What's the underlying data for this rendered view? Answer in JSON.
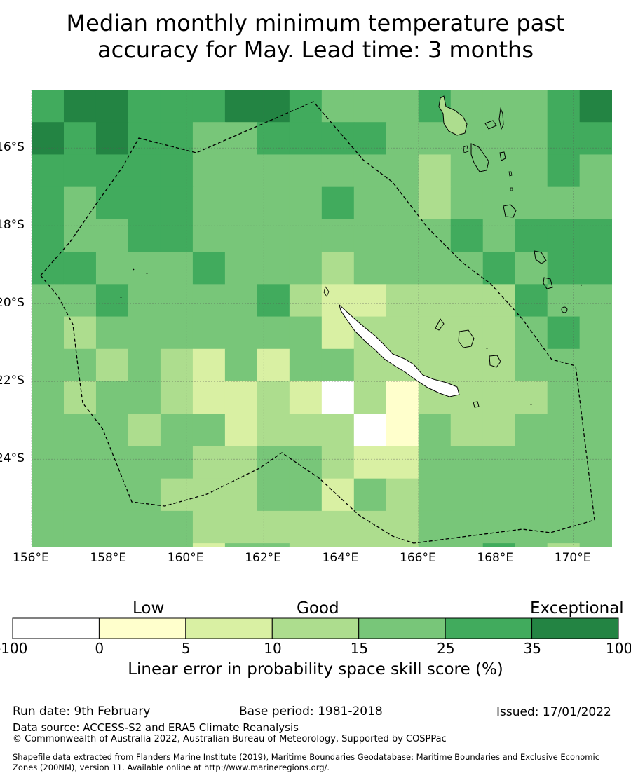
{
  "title_line1": "Median monthly minimum temperature past",
  "title_line2": "accuracy for May. Lead time: 3 months",
  "map": {
    "lon_range": [
      156,
      171
    ],
    "lat_range": [
      -26.25,
      -14.5
    ],
    "lon_ticks": [
      "156°E",
      "158°E",
      "160°E",
      "162°E",
      "164°E",
      "166°E",
      "168°E",
      "170°E"
    ],
    "lon_tick_values": [
      156,
      158,
      160,
      162,
      164,
      166,
      168,
      170
    ],
    "lat_ticks": [
      "16°S",
      "18°S",
      "20°S",
      "22°S",
      "24°S"
    ],
    "lat_tick_values": [
      -16,
      -18,
      -20,
      -22,
      -24
    ],
    "grid": true,
    "boundary": "dashed black EEZ outline",
    "landmass": "New Caledonia and Vanuatu coastlines"
  },
  "legend": {
    "qualitative_labels": [
      "Low",
      "Good",
      "Exceptional"
    ],
    "boundaries": [
      "-100",
      "0",
      "5",
      "10",
      "15",
      "25",
      "35",
      "100"
    ],
    "colors": [
      "#ffffff",
      "#ffffcc",
      "#d9f0a3",
      "#addd8e",
      "#78c679",
      "#41ab5d",
      "#238443"
    ],
    "title": "Linear error in probability space skill score (%)"
  },
  "footer": {
    "run_date": "Run date: 9th February",
    "base_period": "Base period: 1981-2018",
    "issued": "Issued: 17/01/2022",
    "data_source": "Data source: ACCESS-S2 and ERA5 Climate Reanalysis",
    "copyright": "© Commonwealth of Australia 2022, Australian Bureau of Meteorology, Supported by COSPPac",
    "shapefile_line1": "Shapefile data extracted from Flanders Marine Institute (2019), Maritime Boundaries Geodatabase: Maritime Boundaries and Exclusive Economic",
    "shapefile_line2": "Zones (200NM), version 11. Available online at http://www.marineregions.org/."
  },
  "chart_data": {
    "type": "heatmap",
    "title": "Median monthly minimum temperature past accuracy for May. Lead time: 3 months",
    "colorbar_label": "Linear error in probability space skill score (%)",
    "class_boundaries": [
      -100,
      0,
      5,
      10,
      15,
      25,
      35,
      100
    ],
    "lon_start": 156,
    "lat_start": -14.5,
    "cell_size_deg": 0.833,
    "value_key": "class index: 0 = -100 to 0, 1 = 0 to 5, 2 = 5 to 10, 3 = 10 to 15, 4 = 15 to 25, 5 = 25 to 35, 6 = 35 to 100",
    "grid_classes": [
      [
        5,
        6,
        6,
        5,
        5,
        5,
        6,
        6,
        5,
        4,
        4,
        4,
        5,
        4,
        4,
        4,
        5,
        6
      ],
      [
        6,
        5,
        6,
        5,
        5,
        4,
        4,
        5,
        5,
        5,
        5,
        4,
        4,
        4,
        4,
        4,
        5,
        5
      ],
      [
        5,
        5,
        5,
        5,
        5,
        4,
        4,
        4,
        4,
        4,
        4,
        4,
        3,
        4,
        4,
        4,
        5,
        4
      ],
      [
        5,
        4,
        5,
        5,
        5,
        4,
        4,
        4,
        4,
        5,
        4,
        4,
        3,
        4,
        4,
        4,
        4,
        4
      ],
      [
        5,
        4,
        4,
        5,
        5,
        4,
        4,
        4,
        4,
        4,
        4,
        4,
        4,
        5,
        4,
        5,
        5,
        5
      ],
      [
        5,
        5,
        4,
        4,
        4,
        5,
        4,
        4,
        4,
        3,
        4,
        4,
        4,
        4,
        5,
        4,
        5,
        5
      ],
      [
        4,
        4,
        5,
        4,
        4,
        4,
        4,
        5,
        3,
        2,
        2,
        3,
        3,
        3,
        3,
        5,
        4,
        4
      ],
      [
        4,
        3,
        4,
        4,
        4,
        4,
        4,
        4,
        4,
        2,
        3,
        3,
        3,
        3,
        3,
        4,
        5,
        4
      ],
      [
        4,
        4,
        3,
        4,
        3,
        2,
        4,
        2,
        4,
        4,
        3,
        3,
        3,
        3,
        3,
        4,
        4,
        4
      ],
      [
        4,
        3,
        4,
        4,
        3,
        2,
        2,
        3,
        2,
        0,
        3,
        1,
        3,
        3,
        3,
        3,
        4,
        4
      ],
      [
        4,
        4,
        4,
        3,
        4,
        4,
        2,
        3,
        3,
        3,
        0,
        1,
        4,
        3,
        3,
        4,
        4,
        4
      ],
      [
        4,
        4,
        4,
        4,
        4,
        3,
        3,
        4,
        4,
        3,
        2,
        2,
        4,
        4,
        4,
        4,
        4,
        4
      ],
      [
        4,
        4,
        4,
        4,
        3,
        3,
        3,
        4,
        4,
        2,
        4,
        3,
        4,
        4,
        4,
        4,
        4,
        4
      ],
      [
        4,
        4,
        4,
        4,
        4,
        3,
        3,
        3,
        3,
        3,
        3,
        3,
        4,
        4,
        4,
        4,
        4,
        4
      ],
      [
        4,
        4,
        4,
        4,
        4,
        2,
        4,
        4,
        3,
        3,
        3,
        3,
        4,
        4,
        5,
        4,
        3,
        4
      ],
      [
        4,
        4,
        4,
        4,
        4,
        2,
        3,
        4,
        4,
        3,
        3,
        4,
        3,
        4,
        4,
        4,
        4,
        4
      ],
      [
        4,
        3,
        4,
        4,
        4,
        4,
        3,
        4,
        4,
        3,
        3,
        3,
        3,
        4,
        4,
        5,
        3,
        5
      ],
      [
        4,
        3,
        3,
        4,
        4,
        4,
        3,
        3,
        3,
        4,
        3,
        3,
        4,
        4,
        4,
        3,
        3,
        2
      ],
      [
        3,
        3,
        4,
        4,
        4,
        4,
        4,
        3,
        3,
        3,
        4,
        3,
        4,
        4,
        4,
        4,
        4,
        4
      ],
      [
        4,
        4,
        4,
        3,
        4,
        4,
        4,
        3,
        3,
        3,
        3,
        3,
        3,
        4,
        4,
        4,
        4,
        4
      ],
      [
        4,
        4,
        3,
        3,
        4,
        4,
        4,
        3,
        3,
        3,
        4,
        4,
        4,
        4,
        4,
        4,
        4,
        4
      ],
      [
        3,
        4,
        4,
        4,
        3,
        4,
        4,
        4,
        4,
        4,
        4,
        4,
        4,
        4,
        4,
        4,
        4,
        4
      ]
    ]
  }
}
